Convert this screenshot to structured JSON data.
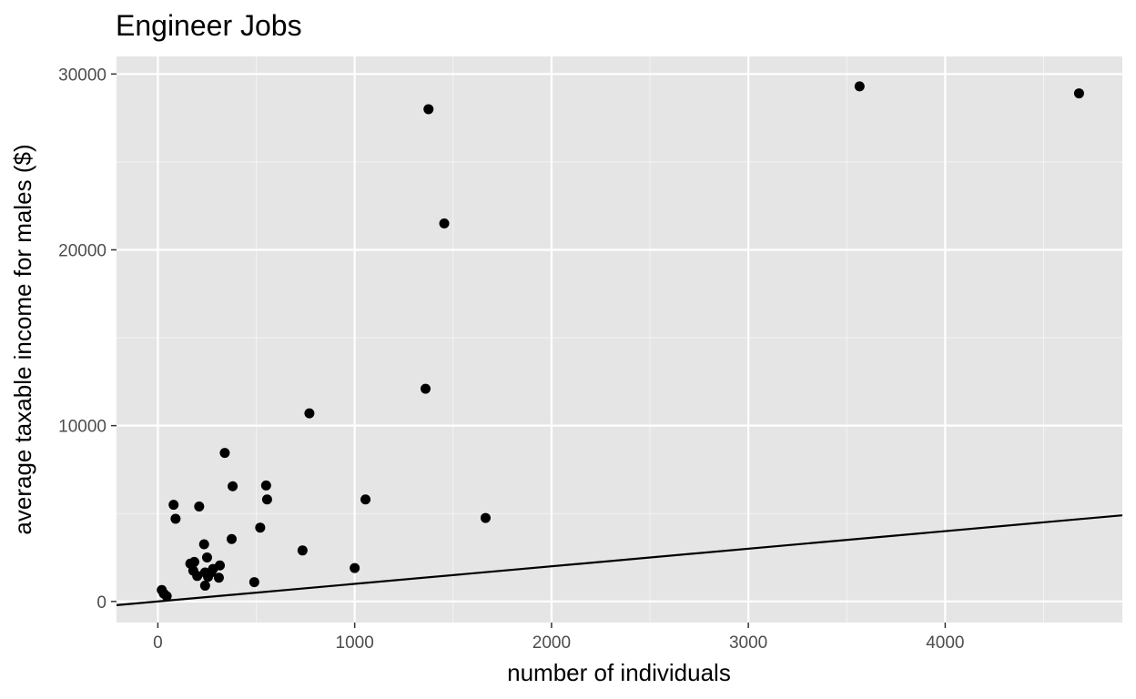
{
  "chart_data": {
    "type": "scatter",
    "title": "Engineer Jobs",
    "xlabel": "number of individuals",
    "ylabel": "average taxable income for males ($)",
    "xlim": [
      -210,
      4900
    ],
    "ylim": [
      -1200,
      31000
    ],
    "x_ticks": [
      0,
      1000,
      2000,
      3000,
      4000
    ],
    "y_ticks": [
      0,
      10000,
      20000,
      30000
    ],
    "x_tick_labels": [
      "0",
      "1000",
      "2000",
      "3000",
      "4000"
    ],
    "y_tick_labels": [
      "0",
      "10000",
      "20000",
      "30000"
    ],
    "grid": true,
    "panel_background": "#e5e5e5",
    "grid_color": "#ffffff",
    "point_color": "#000000",
    "reference_line": {
      "slope": 1,
      "intercept": 0,
      "color": "#000000"
    },
    "points": [
      {
        "x": 20,
        "y": 650
      },
      {
        "x": 30,
        "y": 450
      },
      {
        "x": 45,
        "y": 300
      },
      {
        "x": 80,
        "y": 5500
      },
      {
        "x": 90,
        "y": 4700
      },
      {
        "x": 165,
        "y": 2150
      },
      {
        "x": 180,
        "y": 1750
      },
      {
        "x": 185,
        "y": 2250
      },
      {
        "x": 200,
        "y": 1450
      },
      {
        "x": 210,
        "y": 5400
      },
      {
        "x": 235,
        "y": 3250
      },
      {
        "x": 240,
        "y": 1650
      },
      {
        "x": 240,
        "y": 900
      },
      {
        "x": 250,
        "y": 2500
      },
      {
        "x": 255,
        "y": 1400
      },
      {
        "x": 270,
        "y": 1650
      },
      {
        "x": 280,
        "y": 1850
      },
      {
        "x": 310,
        "y": 1350
      },
      {
        "x": 315,
        "y": 2050
      },
      {
        "x": 340,
        "y": 8450
      },
      {
        "x": 375,
        "y": 3550
      },
      {
        "x": 380,
        "y": 6550
      },
      {
        "x": 490,
        "y": 1100
      },
      {
        "x": 520,
        "y": 4200
      },
      {
        "x": 550,
        "y": 6600
      },
      {
        "x": 555,
        "y": 5800
      },
      {
        "x": 735,
        "y": 2900
      },
      {
        "x": 770,
        "y": 10700
      },
      {
        "x": 1000,
        "y": 1900
      },
      {
        "x": 1055,
        "y": 5800
      },
      {
        "x": 1360,
        "y": 12100
      },
      {
        "x": 1375,
        "y": 28000
      },
      {
        "x": 1455,
        "y": 21500
      },
      {
        "x": 1665,
        "y": 4750
      },
      {
        "x": 3565,
        "y": 29300
      },
      {
        "x": 4680,
        "y": 28900
      }
    ]
  }
}
